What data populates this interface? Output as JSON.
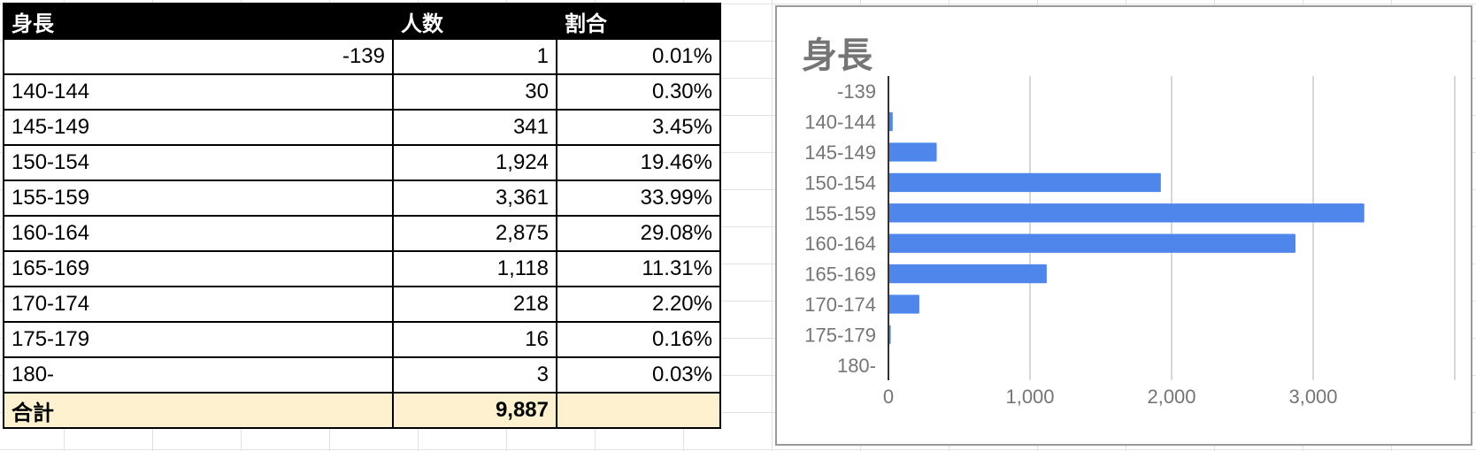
{
  "table": {
    "headers": [
      "身長",
      "人数",
      "割合"
    ],
    "rows": [
      {
        "range": "-139",
        "count": "1",
        "pct": "0.01%"
      },
      {
        "range": "140-144",
        "count": "30",
        "pct": "0.30%"
      },
      {
        "range": "145-149",
        "count": "341",
        "pct": "3.45%"
      },
      {
        "range": "150-154",
        "count": "1,924",
        "pct": "19.46%"
      },
      {
        "range": "155-159",
        "count": "3,361",
        "pct": "33.99%"
      },
      {
        "range": "160-164",
        "count": "2,875",
        "pct": "29.08%"
      },
      {
        "range": "165-169",
        "count": "1,118",
        "pct": "11.31%"
      },
      {
        "range": "170-174",
        "count": "218",
        "pct": "2.20%"
      },
      {
        "range": "175-179",
        "count": "16",
        "pct": "0.16%"
      },
      {
        "range": "180-",
        "count": "3",
        "pct": "0.03%"
      }
    ],
    "total": {
      "label": "合計",
      "count": "9,887",
      "pct": ""
    }
  },
  "colors": {
    "bar": "#4f86ec",
    "header_bg": "#000000",
    "total_bg": "#fdf1cf"
  },
  "chart_data": {
    "type": "bar",
    "orientation": "horizontal",
    "title": "身長",
    "categories": [
      "-139",
      "140-144",
      "145-149",
      "150-154",
      "155-159",
      "160-164",
      "165-169",
      "170-174",
      "175-179",
      "180-"
    ],
    "values": [
      1,
      30,
      341,
      1924,
      3361,
      2875,
      1118,
      218,
      16,
      3
    ],
    "xlim": [
      0,
      4000
    ],
    "x_ticks": [
      "0",
      "1,000",
      "2,000",
      "3,000"
    ],
    "grid": true,
    "legend": "none"
  }
}
